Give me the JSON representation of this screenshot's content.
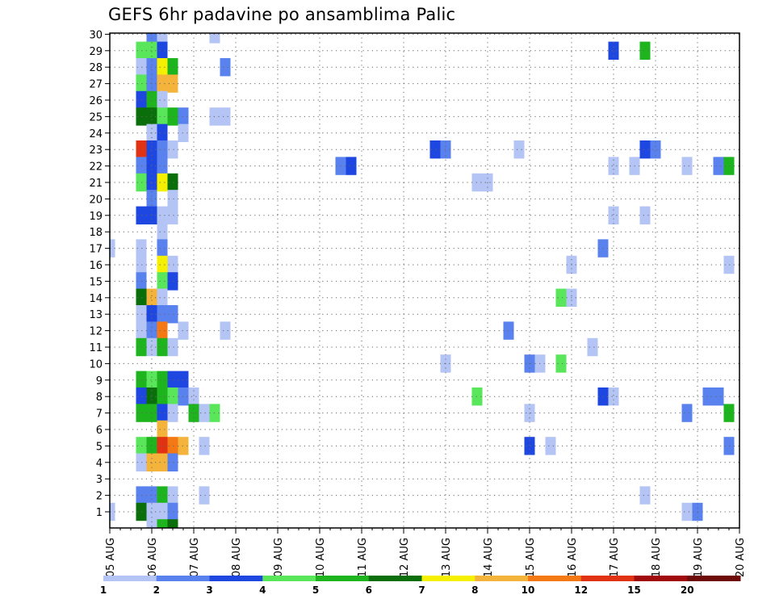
{
  "chart_data": {
    "type": "heatmap",
    "title": "GEFS 6hr padavine po ansamblima Palic",
    "xlabel": "",
    "ylabel": "",
    "x_ticks": [
      "05 AUG",
      "06 AUG",
      "07 AUG",
      "08 AUG",
      "09 AUG",
      "10 AUG",
      "11 AUG",
      "12 AUG",
      "13 AUG",
      "14 AUG",
      "15 AUG",
      "16 AUG",
      "17 AUG",
      "18 AUG",
      "19 AUG",
      "20 AUG"
    ],
    "x_range": [
      "05 AUG 00Z",
      "20 AUG 00Z"
    ],
    "time_step_hours": 6,
    "y_ticks": [
      1,
      2,
      3,
      4,
      5,
      6,
      7,
      8,
      9,
      10,
      11,
      12,
      13,
      14,
      15,
      16,
      17,
      18,
      19,
      20,
      21,
      22,
      23,
      24,
      25,
      26,
      27,
      28,
      29,
      30
    ],
    "grid": true,
    "legend": {
      "placement": "bottom",
      "labels": [
        "1",
        "2",
        "3",
        "4",
        "5",
        "6",
        "7",
        "8",
        "10",
        "12",
        "15",
        "20"
      ],
      "colors": [
        "#b4c4f4",
        "#5a82ee",
        "#1e46e0",
        "#5ae65a",
        "#1eb41e",
        "#0a6e0a",
        "#f4f000",
        "#f4b43c",
        "#f47814",
        "#e13214",
        "#a00a0a",
        "#6e0a0a"
      ]
    },
    "cells": [
      {
        "m": 30,
        "t": "06 AUG 00Z",
        "v": 2
      },
      {
        "m": 30,
        "t": "06 AUG 06Z",
        "v": 1
      },
      {
        "m": 30,
        "t": "07 AUG 12Z",
        "v": 1
      },
      {
        "m": 29,
        "t": "05 AUG 18Z",
        "v": 4
      },
      {
        "m": 29,
        "t": "06 AUG 00Z",
        "v": 4
      },
      {
        "m": 29,
        "t": "06 AUG 06Z",
        "v": 3
      },
      {
        "m": 29,
        "t": "17 AUG 00Z",
        "v": 3
      },
      {
        "m": 29,
        "t": "17 AUG 18Z",
        "v": 5
      },
      {
        "m": 28,
        "t": "05 AUG 18Z",
        "v": 1
      },
      {
        "m": 28,
        "t": "06 AUG 00Z",
        "v": 2
      },
      {
        "m": 28,
        "t": "06 AUG 06Z",
        "v": 7
      },
      {
        "m": 28,
        "t": "06 AUG 12Z",
        "v": 5
      },
      {
        "m": 28,
        "t": "07 AUG 18Z",
        "v": 2
      },
      {
        "m": 27,
        "t": "05 AUG 18Z",
        "v": 4
      },
      {
        "m": 27,
        "t": "06 AUG 00Z",
        "v": 2
      },
      {
        "m": 27,
        "t": "06 AUG 06Z",
        "v": 8
      },
      {
        "m": 27,
        "t": "06 AUG 12Z",
        "v": 8
      },
      {
        "m": 26,
        "t": "05 AUG 18Z",
        "v": 3
      },
      {
        "m": 26,
        "t": "06 AUG 00Z",
        "v": 5
      },
      {
        "m": 26,
        "t": "06 AUG 06Z",
        "v": 1
      },
      {
        "m": 25,
        "t": "05 AUG 18Z",
        "v": 6
      },
      {
        "m": 25,
        "t": "06 AUG 00Z",
        "v": 6
      },
      {
        "m": 25,
        "t": "06 AUG 06Z",
        "v": 4
      },
      {
        "m": 25,
        "t": "06 AUG 12Z",
        "v": 5
      },
      {
        "m": 25,
        "t": "06 AUG 18Z",
        "v": 2
      },
      {
        "m": 25,
        "t": "07 AUG 12Z",
        "v": 1
      },
      {
        "m": 25,
        "t": "07 AUG 18Z",
        "v": 1
      },
      {
        "m": 24,
        "t": "06 AUG 00Z",
        "v": 1
      },
      {
        "m": 24,
        "t": "06 AUG 06Z",
        "v": 3
      },
      {
        "m": 24,
        "t": "06 AUG 18Z",
        "v": 1
      },
      {
        "m": 23,
        "t": "05 AUG 18Z",
        "v": 12
      },
      {
        "m": 23,
        "t": "06 AUG 00Z",
        "v": 3
      },
      {
        "m": 23,
        "t": "06 AUG 06Z",
        "v": 2
      },
      {
        "m": 23,
        "t": "06 AUG 12Z",
        "v": 1
      },
      {
        "m": 23,
        "t": "12 AUG 18Z",
        "v": 3
      },
      {
        "m": 23,
        "t": "13 AUG 00Z",
        "v": 2
      },
      {
        "m": 23,
        "t": "14 AUG 18Z",
        "v": 1
      },
      {
        "m": 23,
        "t": "17 AUG 18Z",
        "v": 3
      },
      {
        "m": 23,
        "t": "18 AUG 00Z",
        "v": 2
      },
      {
        "m": 22,
        "t": "05 AUG 18Z",
        "v": 2
      },
      {
        "m": 22,
        "t": "06 AUG 00Z",
        "v": 3
      },
      {
        "m": 22,
        "t": "06 AUG 06Z",
        "v": 2
      },
      {
        "m": 22,
        "t": "10 AUG 12Z",
        "v": 2
      },
      {
        "m": 22,
        "t": "10 AUG 18Z",
        "v": 3
      },
      {
        "m": 22,
        "t": "17 AUG 00Z",
        "v": 1
      },
      {
        "m": 22,
        "t": "17 AUG 12Z",
        "v": 1
      },
      {
        "m": 22,
        "t": "18 AUG 18Z",
        "v": 1
      },
      {
        "m": 22,
        "t": "19 AUG 12Z",
        "v": 2
      },
      {
        "m": 22,
        "t": "19 AUG 18Z",
        "v": 5
      },
      {
        "m": 21,
        "t": "05 AUG 18Z",
        "v": 4
      },
      {
        "m": 21,
        "t": "06 AUG 00Z",
        "v": 3
      },
      {
        "m": 21,
        "t": "06 AUG 06Z",
        "v": 7
      },
      {
        "m": 21,
        "t": "06 AUG 12Z",
        "v": 6
      },
      {
        "m": 21,
        "t": "13 AUG 18Z",
        "v": 1
      },
      {
        "m": 21,
        "t": "14 AUG 00Z",
        "v": 1
      },
      {
        "m": 20,
        "t": "06 AUG 00Z",
        "v": 2
      },
      {
        "m": 20,
        "t": "06 AUG 12Z",
        "v": 1
      },
      {
        "m": 19,
        "t": "05 AUG 18Z",
        "v": 3
      },
      {
        "m": 19,
        "t": "06 AUG 00Z",
        "v": 3
      },
      {
        "m": 19,
        "t": "06 AUG 06Z",
        "v": 1
      },
      {
        "m": 19,
        "t": "06 AUG 12Z",
        "v": 1
      },
      {
        "m": 19,
        "t": "17 AUG 00Z",
        "v": 1
      },
      {
        "m": 19,
        "t": "17 AUG 18Z",
        "v": 1
      },
      {
        "m": 18,
        "t": "06 AUG 06Z",
        "v": 1
      },
      {
        "m": 17,
        "t": "05 AUG 00Z",
        "v": 1
      },
      {
        "m": 17,
        "t": "05 AUG 18Z",
        "v": 1
      },
      {
        "m": 17,
        "t": "06 AUG 06Z",
        "v": 2
      },
      {
        "m": 17,
        "t": "16 AUG 18Z",
        "v": 2
      },
      {
        "m": 16,
        "t": "05 AUG 18Z",
        "v": 1
      },
      {
        "m": 16,
        "t": "06 AUG 06Z",
        "v": 7
      },
      {
        "m": 16,
        "t": "06 AUG 12Z",
        "v": 1
      },
      {
        "m": 16,
        "t": "16 AUG 00Z",
        "v": 1
      },
      {
        "m": 16,
        "t": "19 AUG 18Z",
        "v": 1
      },
      {
        "m": 15,
        "t": "05 AUG 18Z",
        "v": 2
      },
      {
        "m": 15,
        "t": "06 AUG 06Z",
        "v": 4
      },
      {
        "m": 15,
        "t": "06 AUG 12Z",
        "v": 3
      },
      {
        "m": 14,
        "t": "05 AUG 18Z",
        "v": 6
      },
      {
        "m": 14,
        "t": "06 AUG 00Z",
        "v": 8
      },
      {
        "m": 14,
        "t": "06 AUG 06Z",
        "v": 1
      },
      {
        "m": 14,
        "t": "15 AUG 18Z",
        "v": 4
      },
      {
        "m": 14,
        "t": "16 AUG 00Z",
        "v": 1
      },
      {
        "m": 13,
        "t": "05 AUG 18Z",
        "v": 1
      },
      {
        "m": 13,
        "t": "06 AUG 00Z",
        "v": 3
      },
      {
        "m": 13,
        "t": "06 AUG 06Z",
        "v": 2
      },
      {
        "m": 13,
        "t": "06 AUG 12Z",
        "v": 2
      },
      {
        "m": 12,
        "t": "05 AUG 18Z",
        "v": 1
      },
      {
        "m": 12,
        "t": "06 AUG 00Z",
        "v": 2
      },
      {
        "m": 12,
        "t": "06 AUG 06Z",
        "v": 10
      },
      {
        "m": 12,
        "t": "06 AUG 18Z",
        "v": 1
      },
      {
        "m": 12,
        "t": "07 AUG 18Z",
        "v": 1
      },
      {
        "m": 12,
        "t": "14 AUG 12Z",
        "v": 2
      },
      {
        "m": 11,
        "t": "05 AUG 18Z",
        "v": 5
      },
      {
        "m": 11,
        "t": "06 AUG 00Z",
        "v": 1
      },
      {
        "m": 11,
        "t": "06 AUG 06Z",
        "v": 5
      },
      {
        "m": 11,
        "t": "06 AUG 12Z",
        "v": 1
      },
      {
        "m": 11,
        "t": "16 AUG 12Z",
        "v": 1
      },
      {
        "m": 10,
        "t": "13 AUG 00Z",
        "v": 1
      },
      {
        "m": 10,
        "t": "15 AUG 00Z",
        "v": 2
      },
      {
        "m": 10,
        "t": "15 AUG 06Z",
        "v": 1
      },
      {
        "m": 10,
        "t": "15 AUG 18Z",
        "v": 4
      },
      {
        "m": 9,
        "t": "05 AUG 18Z",
        "v": 5
      },
      {
        "m": 9,
        "t": "06 AUG 00Z",
        "v": 4
      },
      {
        "m": 9,
        "t": "06 AUG 06Z",
        "v": 5
      },
      {
        "m": 9,
        "t": "06 AUG 12Z",
        "v": 3
      },
      {
        "m": 9,
        "t": "06 AUG 18Z",
        "v": 3
      },
      {
        "m": 8,
        "t": "05 AUG 18Z",
        "v": 3
      },
      {
        "m": 8,
        "t": "06 AUG 00Z",
        "v": 6
      },
      {
        "m": 8,
        "t": "06 AUG 06Z",
        "v": 5
      },
      {
        "m": 8,
        "t": "06 AUG 12Z",
        "v": 4
      },
      {
        "m": 8,
        "t": "06 AUG 18Z",
        "v": 2
      },
      {
        "m": 8,
        "t": "07 AUG 00Z",
        "v": 1
      },
      {
        "m": 8,
        "t": "13 AUG 18Z",
        "v": 4
      },
      {
        "m": 8,
        "t": "16 AUG 18Z",
        "v": 3
      },
      {
        "m": 8,
        "t": "17 AUG 00Z",
        "v": 1
      },
      {
        "m": 8,
        "t": "19 AUG 06Z",
        "v": 2
      },
      {
        "m": 8,
        "t": "19 AUG 12Z",
        "v": 2
      },
      {
        "m": 7,
        "t": "05 AUG 18Z",
        "v": 5
      },
      {
        "m": 7,
        "t": "06 AUG 00Z",
        "v": 5
      },
      {
        "m": 7,
        "t": "06 AUG 06Z",
        "v": 3
      },
      {
        "m": 7,
        "t": "06 AUG 12Z",
        "v": 1
      },
      {
        "m": 7,
        "t": "07 AUG 00Z",
        "v": 5
      },
      {
        "m": 7,
        "t": "07 AUG 06Z",
        "v": 1
      },
      {
        "m": 7,
        "t": "07 AUG 12Z",
        "v": 4
      },
      {
        "m": 7,
        "t": "15 AUG 00Z",
        "v": 1
      },
      {
        "m": 7,
        "t": "18 AUG 18Z",
        "v": 2
      },
      {
        "m": 7,
        "t": "19 AUG 18Z",
        "v": 5
      },
      {
        "m": 6,
        "t": "06 AUG 06Z",
        "v": 8
      },
      {
        "m": 5,
        "t": "05 AUG 18Z",
        "v": 4
      },
      {
        "m": 5,
        "t": "06 AUG 00Z",
        "v": 5
      },
      {
        "m": 5,
        "t": "06 AUG 06Z",
        "v": 12
      },
      {
        "m": 5,
        "t": "06 AUG 12Z",
        "v": 10
      },
      {
        "m": 5,
        "t": "06 AUG 18Z",
        "v": 8
      },
      {
        "m": 5,
        "t": "07 AUG 06Z",
        "v": 1
      },
      {
        "m": 5,
        "t": "15 AUG 00Z",
        "v": 3
      },
      {
        "m": 5,
        "t": "15 AUG 12Z",
        "v": 1
      },
      {
        "m": 5,
        "t": "19 AUG 18Z",
        "v": 2
      },
      {
        "m": 4,
        "t": "05 AUG 18Z",
        "v": 1
      },
      {
        "m": 4,
        "t": "06 AUG 00Z",
        "v": 8
      },
      {
        "m": 4,
        "t": "06 AUG 06Z",
        "v": 8
      },
      {
        "m": 4,
        "t": "06 AUG 12Z",
        "v": 2
      },
      {
        "m": 2,
        "t": "05 AUG 18Z",
        "v": 2
      },
      {
        "m": 2,
        "t": "06 AUG 00Z",
        "v": 2
      },
      {
        "m": 2,
        "t": "06 AUG 06Z",
        "v": 5
      },
      {
        "m": 2,
        "t": "06 AUG 12Z",
        "v": 1
      },
      {
        "m": 2,
        "t": "07 AUG 06Z",
        "v": 1
      },
      {
        "m": 2,
        "t": "17 AUG 18Z",
        "v": 1
      },
      {
        "m": 1,
        "t": "05 AUG 00Z",
        "v": 1
      },
      {
        "m": 1,
        "t": "05 AUG 18Z",
        "v": 6
      },
      {
        "m": 1,
        "t": "06 AUG 00Z",
        "v": 1
      },
      {
        "m": 1,
        "t": "06 AUG 06Z",
        "v": 1
      },
      {
        "m": 1,
        "t": "06 AUG 12Z",
        "v": 2
      },
      {
        "m": 1,
        "t": "18 AUG 18Z",
        "v": 1
      },
      {
        "m": 1,
        "t": "19 AUG 00Z",
        "v": 2
      },
      {
        "m": 0,
        "t": "06 AUG 00Z",
        "v": 1
      },
      {
        "m": 0,
        "t": "06 AUG 06Z",
        "v": 5
      },
      {
        "m": 0,
        "t": "06 AUG 12Z",
        "v": 6
      }
    ]
  }
}
